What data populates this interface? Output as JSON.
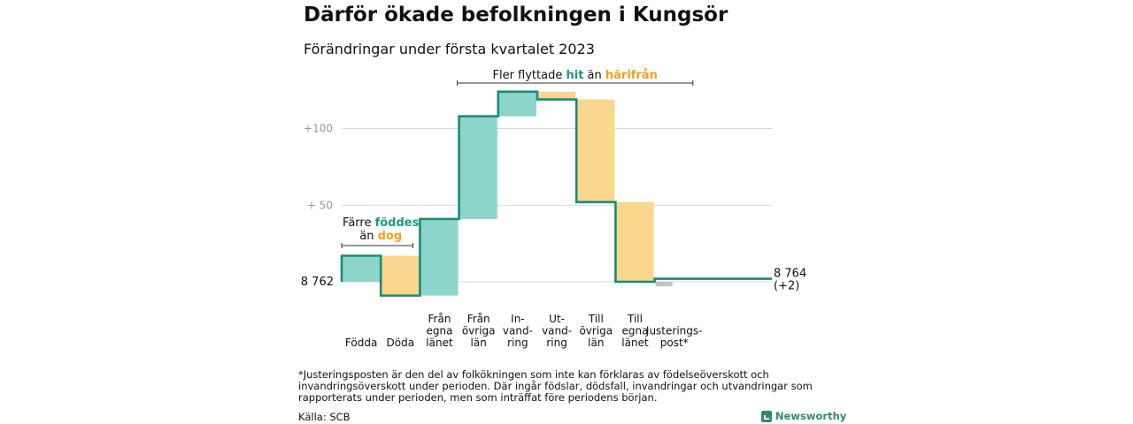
{
  "title": "Därför ökade befolkningen i Kungsör",
  "subtitle": "Förändringar under första kvartalet 2023",
  "colors": {
    "increase": "#8dd5ca",
    "decrease": "#fad68e",
    "adjustment": "#c4c4c4",
    "line": "#1a8a78",
    "teal_text": "#1a9a88",
    "orange_text": "#f0a020",
    "grid": "#d9d9d9"
  },
  "chart_data": {
    "type": "waterfall",
    "title": "Därför ökade befolkningen i Kungsör",
    "subtitle": "Förändringar under första kvartalet 2023",
    "start_value": 8762,
    "start_label": "8 762",
    "end_value": 8764,
    "end_label": [
      "8 764",
      "(+2)"
    ],
    "y_ticks": [
      {
        "value": 8812,
        "label": "+ 50"
      },
      {
        "value": 8862,
        "label": "+100"
      }
    ],
    "ylim": [
      8754,
      8890
    ],
    "steps": [
      {
        "label": [
          "Födda"
        ],
        "change": 17,
        "kind": "increase"
      },
      {
        "label": [
          "Döda"
        ],
        "change": -26,
        "kind": "decrease"
      },
      {
        "label": [
          "Från",
          "egna",
          "länet"
        ],
        "change": 50,
        "kind": "increase"
      },
      {
        "label": [
          "Från",
          "övriga",
          "län"
        ],
        "change": 67,
        "kind": "increase"
      },
      {
        "label": [
          "In-",
          "vand-",
          "ring"
        ],
        "change": 16,
        "kind": "increase"
      },
      {
        "label": [
          "Ut-",
          "vand-",
          "ring"
        ],
        "change": -5,
        "kind": "decrease"
      },
      {
        "label": [
          "Till",
          "övriga",
          "län"
        ],
        "change": -67,
        "kind": "decrease"
      },
      {
        "label": [
          "Till",
          "egna",
          "länet"
        ],
        "change": -52,
        "kind": "decrease"
      },
      {
        "label": [
          "Justerings-",
          "post*"
        ],
        "change": 2,
        "kind": "adjustment"
      }
    ],
    "annotations": [
      {
        "id": "birth",
        "parts": [
          {
            "text": "Färre ",
            "color": "default"
          },
          {
            "text": "föddes",
            "color": "teal"
          }
        ],
        "line2": [
          {
            "text": "än ",
            "color": "default"
          },
          {
            "text": "dog",
            "color": "orange"
          }
        ]
      },
      {
        "id": "migration",
        "parts": [
          {
            "text": "Fler flyttade ",
            "color": "default"
          },
          {
            "text": "hit",
            "color": "teal"
          },
          {
            "text": " än ",
            "color": "default"
          },
          {
            "text": "härifrån",
            "color": "orange"
          }
        ]
      }
    ]
  },
  "footnote": "*Justeringsposten är den del av folkökningen som inte kan förklaras av födelseöverskott och invandringsöverskott under perioden. Där ingår födslar, dödsfall, invandringar och utvandringar som rapporterats under perioden, men som inträffat före periodens början.",
  "source": "Källa: SCB",
  "brand": {
    "name": "Newsworthy",
    "icon": "newsworthy-logo-icon"
  }
}
